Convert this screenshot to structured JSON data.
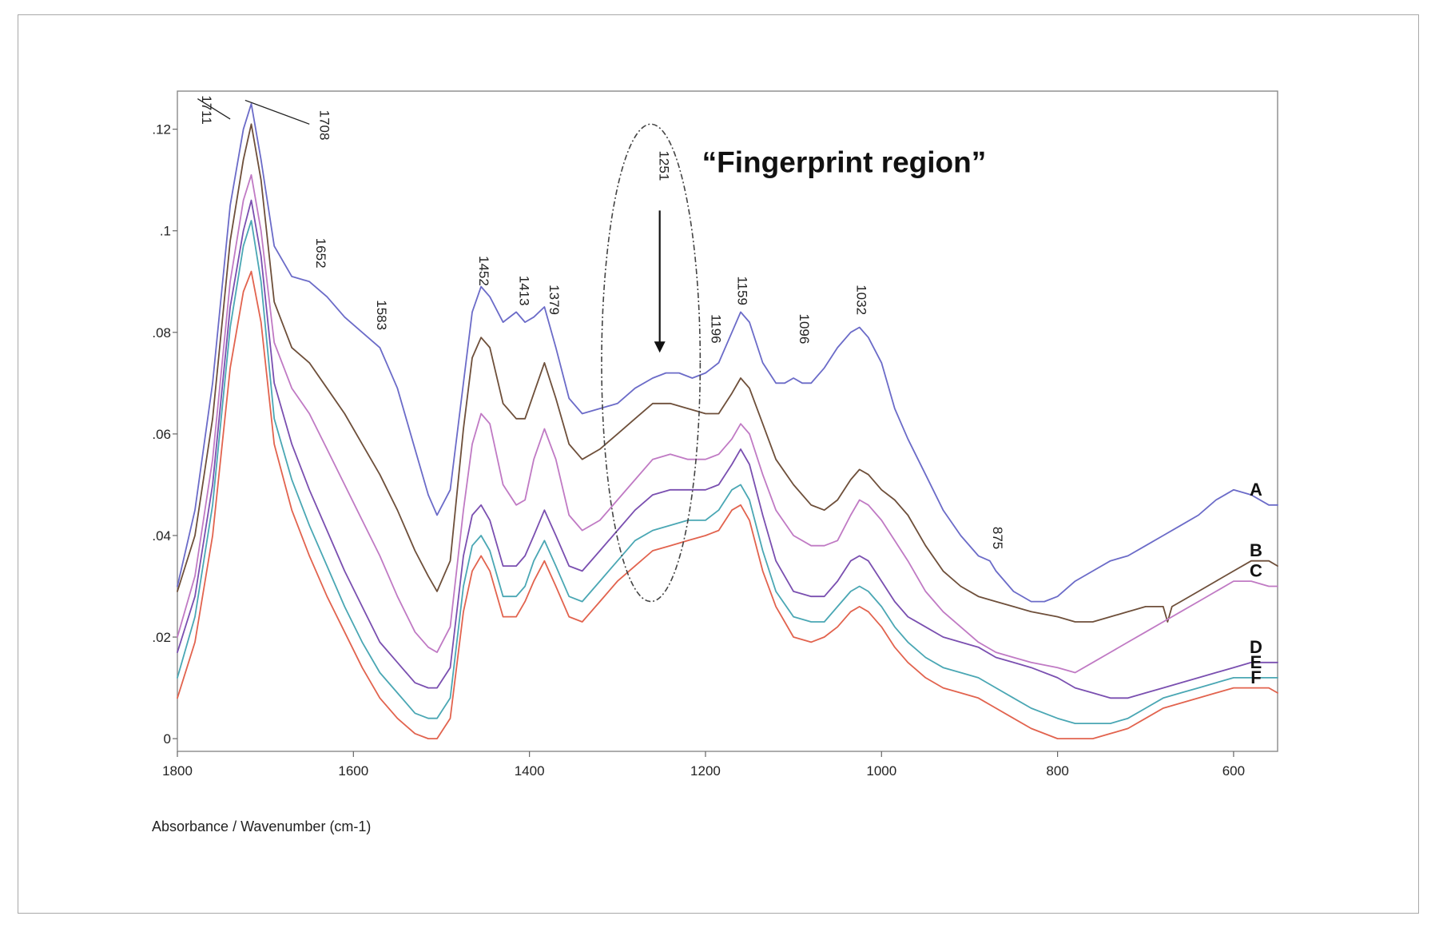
{
  "chart_data": {
    "type": "line",
    "xlabel": "Absorbance / Wavenumber (cm-1)",
    "ylabel": "",
    "x_reversed": true,
    "xlim": [
      1800,
      550
    ],
    "ylim": [
      -0.0025,
      0.1275
    ],
    "x_ticks": [
      1800,
      1600,
      1400,
      1200,
      1000,
      800,
      600
    ],
    "x_tick_labels": [
      "1800",
      "1600",
      "1400",
      "1200",
      "1000",
      "800",
      "600"
    ],
    "y_ticks": [
      0,
      0.02,
      0.04,
      0.06,
      0.08,
      0.1,
      0.12
    ],
    "y_tick_labels": [
      "0",
      ".02",
      ".04",
      ".06",
      ".08",
      ".1",
      ".12"
    ],
    "grid": false,
    "annotation": {
      "text": "“Fingerprint region”",
      "center_x": 1262,
      "center_y": 0.074,
      "radius_x": 56,
      "radius_y": 0.047,
      "arrow_from": [
        1252,
        0.104
      ],
      "arrow_to": [
        1252,
        0.076
      ]
    },
    "peak_labels": [
      {
        "text": "1711",
        "x": 1772,
        "y": 0.1238
      },
      {
        "text": "1708",
        "x": 1638,
        "y": 0.1208
      },
      {
        "text": "1652",
        "x": 1642,
        "y": 0.0956
      },
      {
        "text": "1583",
        "x": 1573,
        "y": 0.0834
      },
      {
        "text": "1452",
        "x": 1457,
        "y": 0.0921
      },
      {
        "text": "1413",
        "x": 1411,
        "y": 0.0882
      },
      {
        "text": "1379",
        "x": 1377,
        "y": 0.0864
      },
      {
        "text": "1251",
        "x": 1252,
        "y": 0.1128
      },
      {
        "text": "1196",
        "x": 1193,
        "y": 0.0807
      },
      {
        "text": "1159",
        "x": 1163,
        "y": 0.0882
      },
      {
        "text": "1096",
        "x": 1093,
        "y": 0.0807
      },
      {
        "text": "1032",
        "x": 1028,
        "y": 0.0864
      },
      {
        "text": "875",
        "x": 873,
        "y": 0.0395
      }
    ],
    "leader_lines": [
      {
        "from": [
          1777,
          0.126
        ],
        "to": [
          1740,
          0.122
        ]
      },
      {
        "from": [
          1723,
          0.1257
        ],
        "to": [
          1650,
          0.121
        ]
      }
    ],
    "series": [
      {
        "name": "A",
        "color": "#6b6bc8",
        "x": [
          1800,
          1780,
          1760,
          1740,
          1725,
          1716,
          1705,
          1690,
          1670,
          1650,
          1630,
          1610,
          1590,
          1570,
          1550,
          1530,
          1515,
          1505,
          1490,
          1475,
          1465,
          1455,
          1445,
          1430,
          1415,
          1405,
          1395,
          1383,
          1370,
          1355,
          1340,
          1320,
          1300,
          1280,
          1260,
          1245,
          1230,
          1215,
          1200,
          1185,
          1170,
          1160,
          1150,
          1135,
          1120,
          1110,
          1100,
          1090,
          1080,
          1065,
          1050,
          1035,
          1025,
          1015,
          1000,
          985,
          970,
          950,
          930,
          910,
          890,
          877,
          870,
          850,
          830,
          815,
          800,
          780,
          760,
          740,
          720,
          700,
          680,
          660,
          640,
          620,
          600,
          580,
          560,
          550
        ],
        "y": [
          0.03,
          0.045,
          0.07,
          0.105,
          0.12,
          0.125,
          0.114,
          0.097,
          0.091,
          0.09,
          0.087,
          0.083,
          0.08,
          0.077,
          0.069,
          0.057,
          0.048,
          0.044,
          0.049,
          0.07,
          0.084,
          0.089,
          0.087,
          0.082,
          0.084,
          0.082,
          0.083,
          0.085,
          0.077,
          0.067,
          0.064,
          0.065,
          0.066,
          0.069,
          0.071,
          0.072,
          0.072,
          0.071,
          0.072,
          0.074,
          0.08,
          0.084,
          0.082,
          0.074,
          0.07,
          0.07,
          0.071,
          0.07,
          0.07,
          0.073,
          0.077,
          0.08,
          0.081,
          0.079,
          0.074,
          0.065,
          0.059,
          0.052,
          0.045,
          0.04,
          0.036,
          0.035,
          0.033,
          0.029,
          0.027,
          0.027,
          0.028,
          0.031,
          0.033,
          0.035,
          0.036,
          0.038,
          0.04,
          0.042,
          0.044,
          0.047,
          0.049,
          0.048,
          0.046,
          0.046
        ]
      },
      {
        "name": "B",
        "color": "#6e4f3a",
        "x": [
          1800,
          1780,
          1760,
          1740,
          1725,
          1716,
          1705,
          1690,
          1670,
          1650,
          1630,
          1610,
          1590,
          1570,
          1550,
          1530,
          1515,
          1505,
          1490,
          1475,
          1465,
          1455,
          1445,
          1430,
          1415,
          1405,
          1395,
          1383,
          1370,
          1355,
          1340,
          1320,
          1300,
          1280,
          1260,
          1240,
          1220,
          1200,
          1185,
          1170,
          1160,
          1150,
          1135,
          1120,
          1100,
          1080,
          1065,
          1050,
          1035,
          1025,
          1015,
          1000,
          985,
          970,
          950,
          930,
          910,
          890,
          870,
          850,
          830,
          800,
          780,
          760,
          740,
          720,
          700,
          680,
          675,
          670,
          660,
          640,
          620,
          600,
          580,
          560,
          550
        ],
        "y": [
          0.029,
          0.04,
          0.063,
          0.098,
          0.114,
          0.121,
          0.11,
          0.086,
          0.077,
          0.074,
          0.069,
          0.064,
          0.058,
          0.052,
          0.045,
          0.037,
          0.032,
          0.029,
          0.035,
          0.061,
          0.075,
          0.079,
          0.077,
          0.066,
          0.063,
          0.063,
          0.068,
          0.074,
          0.067,
          0.058,
          0.055,
          0.057,
          0.06,
          0.063,
          0.066,
          0.066,
          0.065,
          0.064,
          0.064,
          0.068,
          0.071,
          0.069,
          0.062,
          0.055,
          0.05,
          0.046,
          0.045,
          0.047,
          0.051,
          0.053,
          0.052,
          0.049,
          0.047,
          0.044,
          0.038,
          0.033,
          0.03,
          0.028,
          0.027,
          0.026,
          0.025,
          0.024,
          0.023,
          0.023,
          0.024,
          0.025,
          0.026,
          0.026,
          0.023,
          0.026,
          0.027,
          0.029,
          0.031,
          0.033,
          0.035,
          0.035,
          0.034
        ]
      },
      {
        "name": "C",
        "color": "#c07ac4",
        "x": [
          1800,
          1780,
          1760,
          1740,
          1725,
          1716,
          1705,
          1690,
          1670,
          1650,
          1630,
          1610,
          1590,
          1570,
          1550,
          1530,
          1515,
          1505,
          1490,
          1475,
          1465,
          1455,
          1445,
          1430,
          1415,
          1405,
          1395,
          1383,
          1370,
          1355,
          1340,
          1320,
          1300,
          1280,
          1260,
          1240,
          1220,
          1200,
          1185,
          1170,
          1160,
          1150,
          1135,
          1120,
          1100,
          1080,
          1065,
          1050,
          1035,
          1025,
          1015,
          1000,
          985,
          970,
          950,
          930,
          910,
          890,
          870,
          850,
          830,
          800,
          780,
          760,
          740,
          720,
          700,
          680,
          660,
          640,
          620,
          600,
          580,
          560,
          550
        ],
        "y": [
          0.02,
          0.032,
          0.055,
          0.09,
          0.106,
          0.111,
          0.1,
          0.078,
          0.069,
          0.064,
          0.057,
          0.05,
          0.043,
          0.036,
          0.028,
          0.021,
          0.018,
          0.017,
          0.022,
          0.045,
          0.058,
          0.064,
          0.062,
          0.05,
          0.046,
          0.047,
          0.055,
          0.061,
          0.055,
          0.044,
          0.041,
          0.043,
          0.047,
          0.051,
          0.055,
          0.056,
          0.055,
          0.055,
          0.056,
          0.059,
          0.062,
          0.06,
          0.052,
          0.045,
          0.04,
          0.038,
          0.038,
          0.039,
          0.044,
          0.047,
          0.046,
          0.043,
          0.039,
          0.035,
          0.029,
          0.025,
          0.022,
          0.019,
          0.017,
          0.016,
          0.015,
          0.014,
          0.013,
          0.015,
          0.017,
          0.019,
          0.021,
          0.023,
          0.025,
          0.027,
          0.029,
          0.031,
          0.031,
          0.03,
          0.03
        ]
      },
      {
        "name": "D",
        "color": "#7a4fb0",
        "x": [
          1800,
          1780,
          1760,
          1740,
          1725,
          1716,
          1705,
          1690,
          1670,
          1650,
          1630,
          1610,
          1590,
          1570,
          1550,
          1530,
          1515,
          1505,
          1490,
          1475,
          1465,
          1455,
          1445,
          1430,
          1415,
          1405,
          1395,
          1383,
          1370,
          1355,
          1340,
          1320,
          1300,
          1280,
          1260,
          1240,
          1220,
          1200,
          1185,
          1170,
          1160,
          1150,
          1135,
          1120,
          1100,
          1080,
          1065,
          1050,
          1035,
          1025,
          1015,
          1000,
          985,
          970,
          950,
          930,
          910,
          890,
          870,
          850,
          830,
          800,
          780,
          760,
          740,
          720,
          700,
          680,
          660,
          640,
          620,
          600,
          580,
          560,
          550
        ],
        "y": [
          0.017,
          0.028,
          0.05,
          0.085,
          0.1,
          0.106,
          0.095,
          0.07,
          0.058,
          0.049,
          0.041,
          0.033,
          0.026,
          0.019,
          0.015,
          0.011,
          0.01,
          0.01,
          0.014,
          0.036,
          0.044,
          0.046,
          0.043,
          0.034,
          0.034,
          0.036,
          0.04,
          0.045,
          0.04,
          0.034,
          0.033,
          0.037,
          0.041,
          0.045,
          0.048,
          0.049,
          0.049,
          0.049,
          0.05,
          0.054,
          0.057,
          0.054,
          0.044,
          0.035,
          0.029,
          0.028,
          0.028,
          0.031,
          0.035,
          0.036,
          0.035,
          0.031,
          0.027,
          0.024,
          0.022,
          0.02,
          0.019,
          0.018,
          0.016,
          0.015,
          0.014,
          0.012,
          0.01,
          0.009,
          0.008,
          0.008,
          0.009,
          0.01,
          0.011,
          0.012,
          0.013,
          0.014,
          0.015,
          0.015,
          0.015
        ]
      },
      {
        "name": "E",
        "color": "#4aa7b4",
        "x": [
          1800,
          1780,
          1760,
          1740,
          1725,
          1716,
          1705,
          1690,
          1670,
          1650,
          1630,
          1610,
          1590,
          1570,
          1550,
          1530,
          1515,
          1505,
          1490,
          1475,
          1465,
          1455,
          1445,
          1430,
          1415,
          1405,
          1395,
          1383,
          1370,
          1355,
          1340,
          1320,
          1300,
          1280,
          1260,
          1240,
          1220,
          1200,
          1185,
          1170,
          1160,
          1150,
          1135,
          1120,
          1100,
          1080,
          1065,
          1050,
          1035,
          1025,
          1015,
          1000,
          985,
          970,
          950,
          930,
          910,
          890,
          870,
          850,
          830,
          800,
          780,
          760,
          740,
          720,
          700,
          680,
          660,
          640,
          620,
          600,
          580,
          560,
          550
        ],
        "y": [
          0.012,
          0.024,
          0.046,
          0.081,
          0.097,
          0.102,
          0.09,
          0.063,
          0.051,
          0.042,
          0.034,
          0.026,
          0.019,
          0.013,
          0.009,
          0.005,
          0.004,
          0.004,
          0.008,
          0.03,
          0.038,
          0.04,
          0.037,
          0.028,
          0.028,
          0.03,
          0.035,
          0.039,
          0.034,
          0.028,
          0.027,
          0.031,
          0.035,
          0.039,
          0.041,
          0.042,
          0.043,
          0.043,
          0.045,
          0.049,
          0.05,
          0.047,
          0.037,
          0.029,
          0.024,
          0.023,
          0.023,
          0.026,
          0.029,
          0.03,
          0.029,
          0.026,
          0.022,
          0.019,
          0.016,
          0.014,
          0.013,
          0.012,
          0.01,
          0.008,
          0.006,
          0.004,
          0.003,
          0.003,
          0.003,
          0.004,
          0.006,
          0.008,
          0.009,
          0.01,
          0.011,
          0.012,
          0.012,
          0.012,
          0.012
        ]
      },
      {
        "name": "F",
        "color": "#e2634e",
        "x": [
          1800,
          1780,
          1760,
          1740,
          1725,
          1716,
          1705,
          1690,
          1670,
          1650,
          1630,
          1610,
          1590,
          1570,
          1550,
          1530,
          1515,
          1505,
          1490,
          1475,
          1465,
          1455,
          1445,
          1430,
          1415,
          1405,
          1395,
          1383,
          1370,
          1355,
          1340,
          1320,
          1300,
          1280,
          1260,
          1240,
          1220,
          1200,
          1185,
          1170,
          1160,
          1150,
          1135,
          1120,
          1100,
          1080,
          1065,
          1050,
          1035,
          1025,
          1015,
          1000,
          985,
          970,
          950,
          930,
          910,
          890,
          870,
          850,
          830,
          800,
          780,
          760,
          740,
          720,
          700,
          680,
          660,
          640,
          620,
          600,
          580,
          560,
          550
        ],
        "y": [
          0.008,
          0.019,
          0.04,
          0.073,
          0.088,
          0.092,
          0.082,
          0.058,
          0.045,
          0.036,
          0.028,
          0.021,
          0.014,
          0.008,
          0.004,
          0.001,
          0.0,
          0.0,
          0.004,
          0.025,
          0.033,
          0.036,
          0.033,
          0.024,
          0.024,
          0.027,
          0.031,
          0.035,
          0.03,
          0.024,
          0.023,
          0.027,
          0.031,
          0.034,
          0.037,
          0.038,
          0.039,
          0.04,
          0.041,
          0.045,
          0.046,
          0.043,
          0.033,
          0.026,
          0.02,
          0.019,
          0.02,
          0.022,
          0.025,
          0.026,
          0.025,
          0.022,
          0.018,
          0.015,
          0.012,
          0.01,
          0.009,
          0.008,
          0.006,
          0.004,
          0.002,
          0.0,
          0.0,
          0.0,
          0.001,
          0.002,
          0.004,
          0.006,
          0.007,
          0.008,
          0.009,
          0.01,
          0.01,
          0.01,
          0.009
        ]
      }
    ]
  }
}
